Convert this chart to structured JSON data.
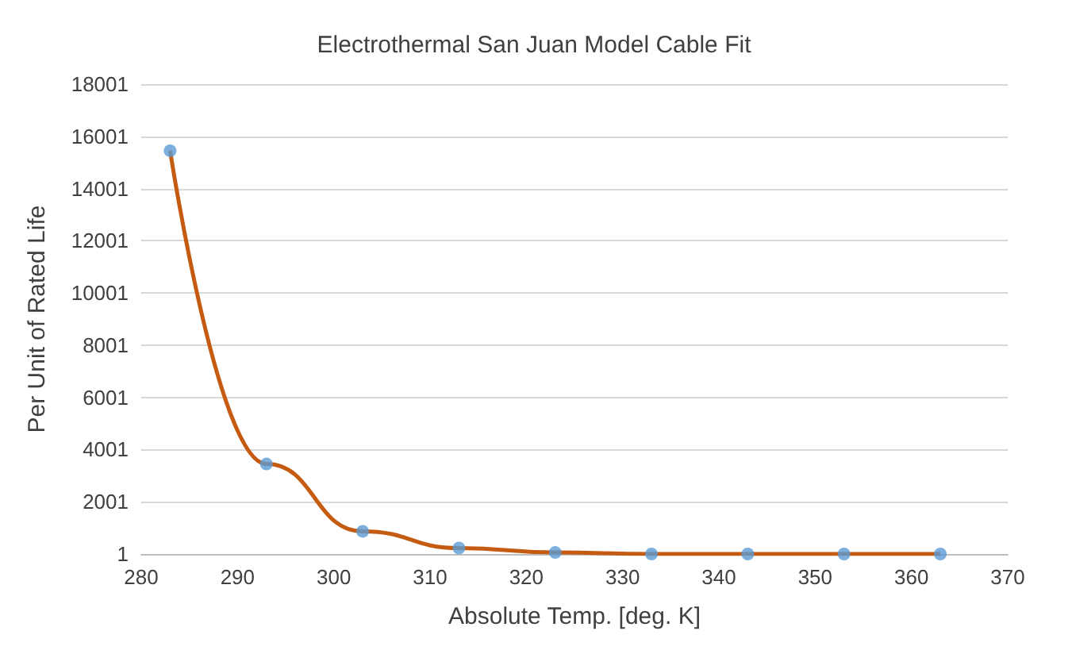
{
  "chart_data": {
    "type": "scatter",
    "title": "Electrothermal San Juan Model Cable Fit",
    "xlabel": "Absolute Temp. [deg. K]",
    "ylabel": "Per Unit of Rated Life",
    "x": [
      283,
      293,
      303,
      313,
      323,
      333,
      343,
      353,
      363
    ],
    "series": [
      {
        "type": "line",
        "color": "#c55a11",
        "values": [
          15450,
          3450,
          870,
          230,
          60,
          1,
          1,
          1,
          1
        ]
      },
      {
        "color": "#5b9bd5",
        "marker": "circle",
        "values": [
          15450,
          3450,
          870,
          230,
          60,
          1,
          1,
          1,
          1
        ]
      }
    ],
    "xlim": [
      280,
      370
    ],
    "xticks": [
      280,
      290,
      300,
      310,
      320,
      330,
      340,
      350,
      360,
      370
    ],
    "ylim": [
      1,
      18001
    ],
    "yticks": [
      1,
      2001,
      4001,
      6001,
      8001,
      10001,
      12001,
      14001,
      16001,
      18001
    ],
    "grid": "y"
  }
}
